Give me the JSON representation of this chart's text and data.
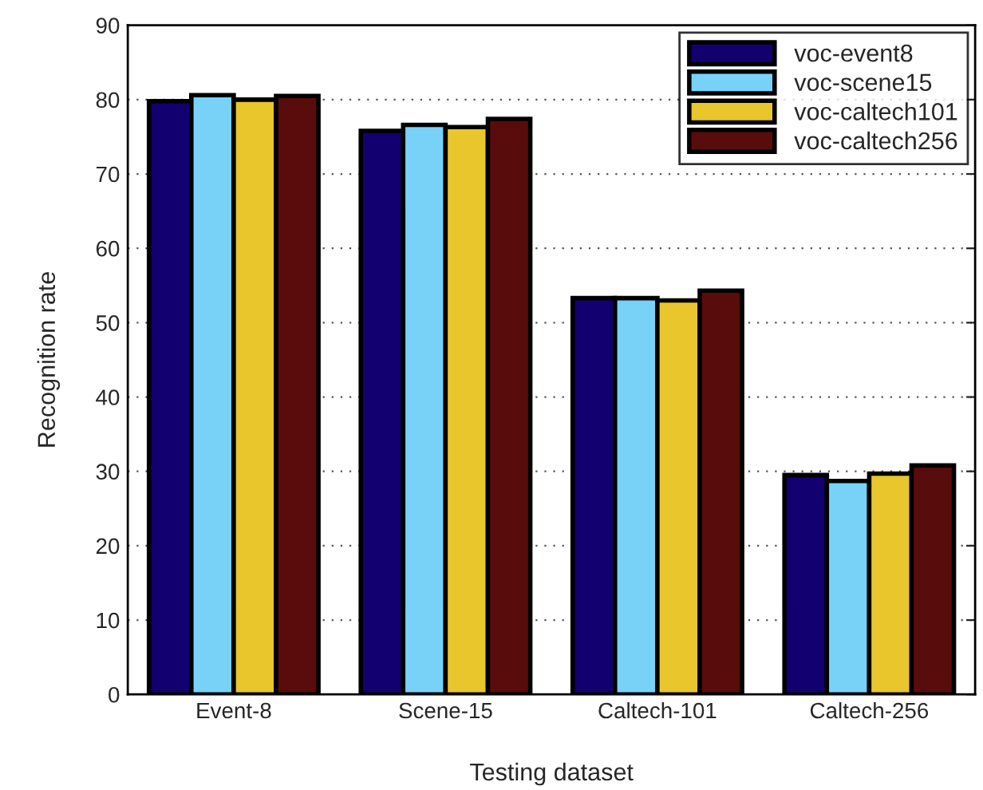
{
  "chart_data": {
    "type": "bar",
    "xlabel": "Testing dataset",
    "ylabel": "Recognition rate",
    "categories": [
      "Event-8",
      "Scene-15",
      "Caltech-101",
      "Caltech-256"
    ],
    "series": [
      {
        "name": "voc-event8",
        "color": "#120070",
        "values": [
          79.8,
          75.8,
          53.3,
          29.5
        ]
      },
      {
        "name": "voc-scene15",
        "color": "#78d2f8",
        "values": [
          80.6,
          76.6,
          53.3,
          28.7
        ]
      },
      {
        "name": "voc-caltech101",
        "color": "#e8c62c",
        "values": [
          80.0,
          76.3,
          53.0,
          29.7
        ]
      },
      {
        "name": "voc-caltech256",
        "color": "#580c0c",
        "values": [
          80.5,
          77.4,
          54.3,
          30.8
        ]
      }
    ],
    "ylim": [
      0,
      90
    ],
    "yticks": [
      0,
      10,
      20,
      30,
      40,
      50,
      60,
      70,
      80,
      90
    ],
    "grid": "y",
    "legend": "top right"
  }
}
